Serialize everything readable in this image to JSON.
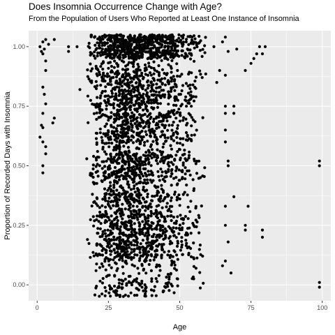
{
  "chart_data": {
    "type": "scatter",
    "title": "Does Insomnia Occurrence Change with Age?",
    "subtitle": "From the Population of Users Who Reported at Least One Instance of Insomnia",
    "xlabel": "Age",
    "ylabel": "Proportion of Recorded Days with Insomnia",
    "xlim": [
      -3,
      103
    ],
    "ylim": [
      -0.067,
      1.067
    ],
    "x_ticks": [
      0,
      25,
      50,
      75,
      100
    ],
    "x_tick_labels": [
      "0",
      "25",
      "50",
      "75",
      "100"
    ],
    "y_ticks": [
      0.0,
      0.25,
      0.5,
      0.75,
      1.0
    ],
    "y_tick_labels": [
      "0.00",
      "0.25",
      "0.50",
      "0.75",
      "1.00"
    ],
    "grid": true,
    "point_color": "#000000",
    "panel_background": "#ebebeb",
    "grid_color": "#ffffff",
    "jitter": {
      "x": 0.4,
      "y": 0.05
    },
    "points_generated": {
      "description": "Dense cloud of jittered points, ages roughly 17-60, concentrated in ages 18-45, with heavy banding at proportions 0, 0.1, 0.2, 0.25, 0.33, 0.4, 0.5, 0.6, 0.67, 0.75, 0.8, 0.9 and 1.0.",
      "n": 3000,
      "x_range": [
        17,
        60
      ],
      "x_mode": 30,
      "levels": [
        0,
        0.1,
        0.125,
        0.143,
        0.167,
        0.2,
        0.25,
        0.286,
        0.333,
        0.4,
        0.429,
        0.5,
        0.571,
        0.6,
        0.667,
        0.714,
        0.75,
        0.8,
        0.833,
        0.857,
        0.9,
        1.0
      ],
      "level_weights": [
        6,
        3,
        3,
        3,
        4,
        6,
        7,
        3,
        7,
        6,
        3,
        12,
        3,
        6,
        7,
        3,
        7,
        6,
        4,
        3,
        6,
        30
      ]
    },
    "points": [
      {
        "x": 1,
        "y": 1.0
      },
      {
        "x": 1.5,
        "y": 0.98
      },
      {
        "x": 2,
        "y": 1.02
      },
      {
        "x": 2.5,
        "y": 0.99
      },
      {
        "x": 3,
        "y": 1.03
      },
      {
        "x": 2,
        "y": 0.97
      },
      {
        "x": 4,
        "y": 1.01
      },
      {
        "x": 6,
        "y": 1.03
      },
      {
        "x": 3,
        "y": 0.94
      },
      {
        "x": 3,
        "y": 0.9
      },
      {
        "x": 2,
        "y": 0.83
      },
      {
        "x": 2.5,
        "y": 0.8
      },
      {
        "x": 3,
        "y": 0.76
      },
      {
        "x": 2,
        "y": 0.72
      },
      {
        "x": 1.5,
        "y": 0.67
      },
      {
        "x": 2,
        "y": 0.66
      },
      {
        "x": 1,
        "y": 0.62
      },
      {
        "x": 2,
        "y": 0.6
      },
      {
        "x": 3,
        "y": 0.58
      },
      {
        "x": 6,
        "y": 0.7
      },
      {
        "x": 5.5,
        "y": 0.68
      },
      {
        "x": 2,
        "y": 0.5
      },
      {
        "x": 2,
        "y": 0.47
      },
      {
        "x": 3,
        "y": 0.55
      },
      {
        "x": 11,
        "y": 1.0
      },
      {
        "x": 11,
        "y": 0.98
      },
      {
        "x": 14,
        "y": 1.0
      },
      {
        "x": 15,
        "y": 0.82
      },
      {
        "x": 64,
        "y": 0.9
      },
      {
        "x": 66,
        "y": 0.88
      },
      {
        "x": 63,
        "y": 0.85
      },
      {
        "x": 66,
        "y": 0.75
      },
      {
        "x": 66,
        "y": 0.72
      },
      {
        "x": 66,
        "y": 0.6
      },
      {
        "x": 66,
        "y": 0.65
      },
      {
        "x": 67,
        "y": 0.5
      },
      {
        "x": 67,
        "y": 0.52
      },
      {
        "x": 66,
        "y": 0.33
      },
      {
        "x": 66,
        "y": 0.25
      },
      {
        "x": 66,
        "y": 0.1
      },
      {
        "x": 65,
        "y": 0.08
      },
      {
        "x": 67,
        "y": 0.18
      },
      {
        "x": 68,
        "y": 0.05
      },
      {
        "x": 69,
        "y": 0.37
      },
      {
        "x": 69,
        "y": 0.72
      },
      {
        "x": 69,
        "y": 0.75
      },
      {
        "x": 62,
        "y": 1.0
      },
      {
        "x": 65,
        "y": 1.02
      },
      {
        "x": 66,
        "y": 1.04
      },
      {
        "x": 67,
        "y": 0.98
      },
      {
        "x": 70,
        "y": 0.99
      },
      {
        "x": 73,
        "y": 0.9
      },
      {
        "x": 73,
        "y": 0.25
      },
      {
        "x": 73,
        "y": 0.23
      },
      {
        "x": 74,
        "y": 0.33
      },
      {
        "x": 75,
        "y": 0.93
      },
      {
        "x": 76,
        "y": 0.95
      },
      {
        "x": 77,
        "y": 0.97
      },
      {
        "x": 78,
        "y": 1.0
      },
      {
        "x": 79,
        "y": 0.97
      },
      {
        "x": 80,
        "y": 1.0
      },
      {
        "x": 79,
        "y": 0.23
      },
      {
        "x": 79,
        "y": 0.2
      },
      {
        "x": 99,
        "y": 0.52
      },
      {
        "x": 99,
        "y": 0.5
      },
      {
        "x": 99,
        "y": 0.01
      },
      {
        "x": 99,
        "y": -0.01
      }
    ]
  }
}
